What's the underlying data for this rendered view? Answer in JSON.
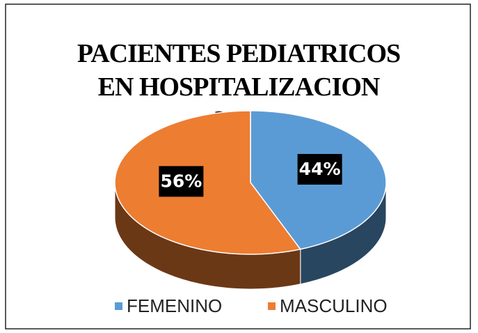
{
  "chart_data": {
    "type": "pie",
    "title": "PACIENTES PEDIATRICOS EN HOSPITALIZACION 2019",
    "categories": [
      "FEMENINO",
      "MASCULINO"
    ],
    "values": [
      44,
      56
    ],
    "value_labels": [
      "44%",
      "56%"
    ],
    "colors": [
      "#5b9bd5",
      "#ed7d31"
    ],
    "legend": "bottom"
  }
}
